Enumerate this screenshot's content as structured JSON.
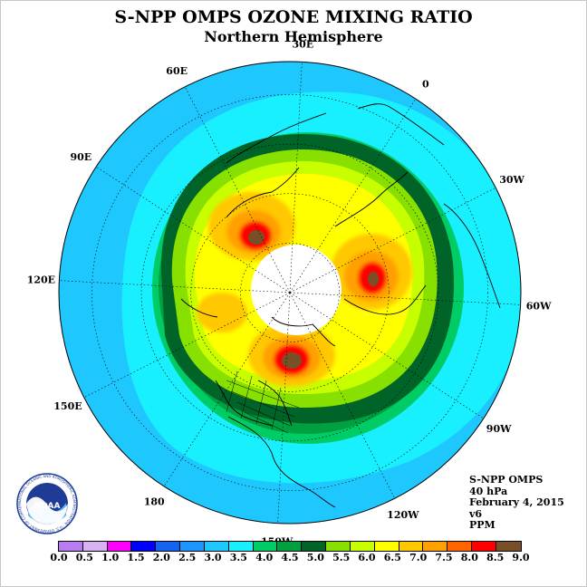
{
  "title": "S-NPP OMPS OZONE MIXING RATIO",
  "subtitle": "Northern Hemisphere",
  "info_lines": [
    "S-NPP OMPS",
    "40 hPa",
    "February 4, 2015",
    "v6",
    "PPM"
  ],
  "longitude_labels": [
    {
      "text": "90E",
      "lon": 90
    },
    {
      "text": "60E",
      "lon": 60
    },
    {
      "text": "30E",
      "lon": 30
    },
    {
      "text": "0",
      "lon": 0
    },
    {
      "text": "30W",
      "lon": -30
    },
    {
      "text": "60W",
      "lon": -60
    },
    {
      "text": "90W",
      "lon": -90
    },
    {
      "text": "120W",
      "lon": -120
    },
    {
      "text": "150W",
      "lon": -150
    },
    {
      "text": "180",
      "lon": 180
    },
    {
      "text": "150E",
      "lon": 150
    },
    {
      "text": "120E",
      "lon": 120
    }
  ],
  "colorbar": {
    "labels": [
      "0.0",
      "0.5",
      "1.0",
      "1.5",
      "2.0",
      "2.5",
      "3.0",
      "3.5",
      "4.0",
      "4.5",
      "5.0",
      "5.5",
      "6.0",
      "6.5",
      "7.0",
      "7.5",
      "8.0",
      "8.5",
      "9.0"
    ],
    "colors": [
      "#b77bf2",
      "#d9b2f5",
      "#ff00ff",
      "#0000ff",
      "#1464f0",
      "#1e96ff",
      "#1ec8ff",
      "#19f0ff",
      "#00cc66",
      "#00a040",
      "#006428",
      "#88e000",
      "#c8ff00",
      "#ffff00",
      "#ffc800",
      "#ffa000",
      "#ff6400",
      "#ff0000",
      "#785028"
    ]
  },
  "logo": {
    "text": "NOAA",
    "ring_text": "NATIONAL OCEANIC AND ATMOSPHERIC ADMINISTRATION · U.S. DEPARTMENT OF COMMERCE"
  },
  "colors": {
    "pole_fill": "#ffffff",
    "low_ozone": "#1ec8ff"
  }
}
